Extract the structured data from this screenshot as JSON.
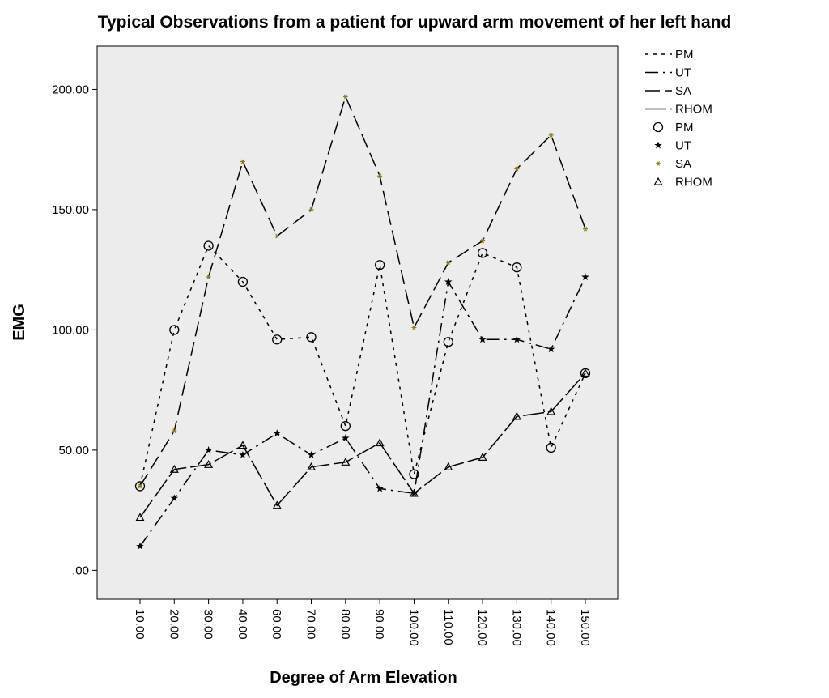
{
  "chart_data": {
    "type": "line",
    "title": "Typical Observations from a patient for upward arm movement of her left hand",
    "xlabel": "Degree of Arm Elevation",
    "ylabel": "EMG",
    "categories": [
      "10.00",
      "20.00",
      "30.00",
      "40.00",
      "60.00",
      "70.00",
      "80.00",
      "90.00",
      "100.00",
      "110.00",
      "120.00",
      "130.00",
      "140.00",
      "150.00"
    ],
    "yticks": [
      ".00",
      "50.00",
      "100.00",
      "150.00",
      "200.00"
    ],
    "ylim": [
      -12,
      218
    ],
    "grid": false,
    "background": "#ececec",
    "legend_position": "right",
    "series": [
      {
        "name": "PM",
        "dash": "4 6",
        "marker": "circle",
        "color": "#000000",
        "values": [
          35,
          100,
          135,
          120,
          96,
          97,
          60,
          127,
          40,
          95,
          132,
          126,
          51,
          82
        ]
      },
      {
        "name": "UT",
        "dash": "16 6 3 6",
        "marker": "star",
        "color": "#000000",
        "values": [
          10,
          30,
          50,
          48,
          57,
          48,
          55,
          34,
          32,
          120,
          96,
          96,
          92,
          122
        ]
      },
      {
        "name": "SA",
        "dash": "18 7",
        "marker": "asterisk",
        "color": "#8a7a1e",
        "values": [
          35,
          58,
          122,
          170,
          139,
          150,
          197,
          164,
          101,
          128,
          137,
          167,
          181,
          142
        ]
      },
      {
        "name": "RHOM",
        "dash": "26 5",
        "marker": "triangle",
        "color": "#000000",
        "values": [
          22,
          42,
          44,
          52,
          27,
          43,
          45,
          53,
          32,
          43,
          47,
          64,
          66,
          82
        ]
      }
    ],
    "legend_lines": [
      {
        "label": "PM",
        "dash": "4 6"
      },
      {
        "label": "UT",
        "dash": "16 6 3 6"
      },
      {
        "label": "SA",
        "dash": "18 7"
      },
      {
        "label": "RHOM",
        "dash": "26 5"
      }
    ],
    "legend_markers": [
      {
        "label": "PM",
        "marker": "circle"
      },
      {
        "label": "UT",
        "marker": "star"
      },
      {
        "label": "SA",
        "marker": "asterisk"
      },
      {
        "label": "RHOM",
        "marker": "triangle"
      }
    ]
  }
}
